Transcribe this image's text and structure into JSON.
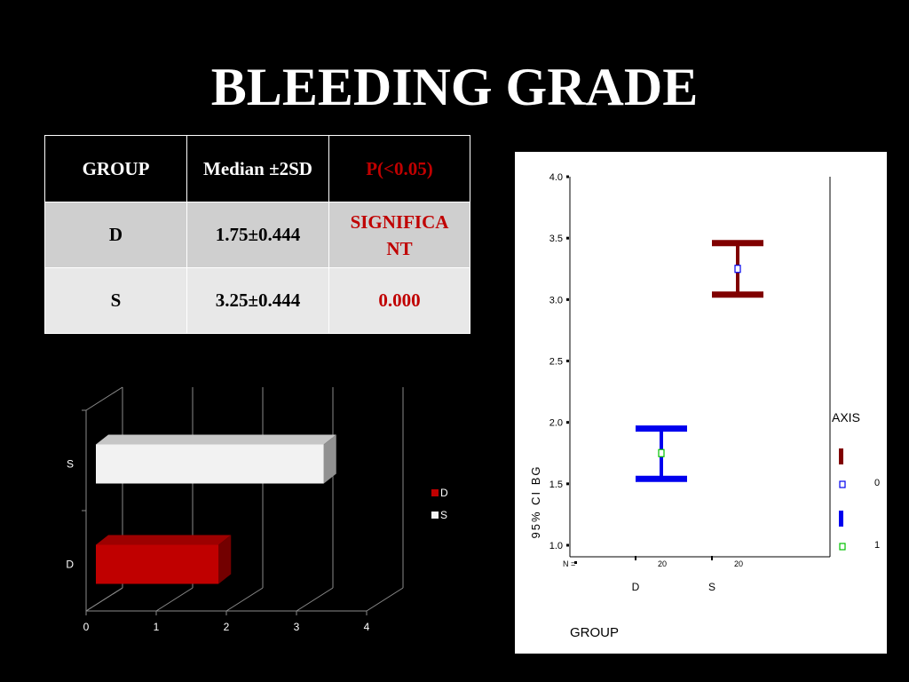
{
  "slide": {
    "title": "BLEEDING GRADE"
  },
  "table": {
    "headers": [
      "GROUP",
      "Median ±2SD",
      "P(<0.05)"
    ],
    "rows": [
      [
        "D",
        "1.75±0.444",
        "SIGNIFICA NT"
      ],
      [
        "S",
        "3.25±0.444",
        "0.000"
      ]
    ]
  },
  "chart_data": [
    {
      "type": "bar",
      "orientation": "horizontal",
      "style": "3d",
      "categories": [
        "D",
        "S"
      ],
      "series": [
        {
          "name": "D",
          "values": [
            1.75,
            null
          ],
          "color": "#c00000"
        },
        {
          "name": "S",
          "values": [
            null,
            3.25
          ],
          "color": "#f2f2f2"
        }
      ],
      "xlim": [
        0,
        4
      ],
      "xticks": [
        "0",
        "1",
        "2",
        "3",
        "4"
      ],
      "grid": true,
      "legend": "right"
    },
    {
      "type": "errorbar",
      "xlabel": "GROUP",
      "ylabel": "95% CI BG",
      "categories": [
        "D",
        "S"
      ],
      "n_label": "N =",
      "n": [
        "20",
        "20"
      ],
      "ylim": [
        1.0,
        4.0
      ],
      "yticks": [
        "1.0",
        "1.5",
        "2.0",
        "2.5",
        "3.0",
        "3.5",
        "4.0"
      ],
      "series": [
        {
          "category": "D",
          "mean": 1.75,
          "lower": 1.54,
          "upper": 1.95,
          "color": "#0000ee"
        },
        {
          "category": "S",
          "mean": 3.25,
          "lower": 3.04,
          "upper": 3.46,
          "color": "#800000"
        }
      ],
      "legend": {
        "title": "AXIS",
        "entries": [
          {
            "label": "0",
            "color": "#800000"
          },
          {
            "label": "1",
            "color": "#0000ee"
          }
        ]
      }
    }
  ]
}
